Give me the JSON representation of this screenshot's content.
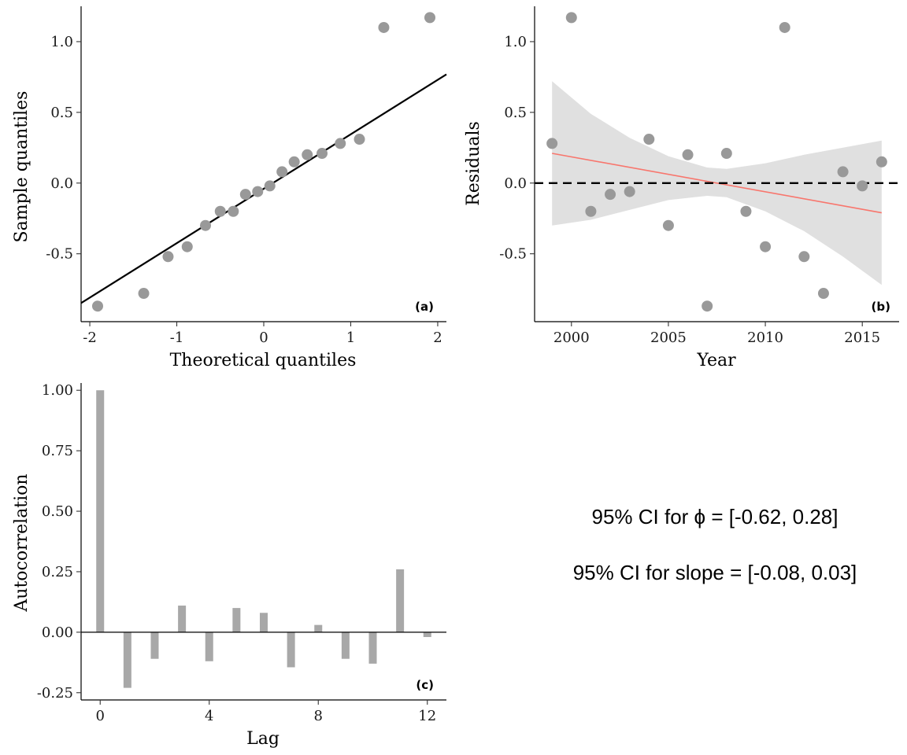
{
  "colors": {
    "points": "#999999",
    "bars": "#a8a8a8",
    "ribbon": "#e0e0e0",
    "trend": "#f8766d",
    "axis": "#000000"
  },
  "chart_data": [
    {
      "type": "scatter",
      "panel_tag": "(a)",
      "title": "",
      "xlabel": "Theoretical quantiles",
      "ylabel": "Sample quantiles",
      "xlim": [
        -2.1,
        2.1
      ],
      "ylim": [
        -0.98,
        1.25
      ],
      "xticks": [
        -2,
        -1,
        0,
        1,
        2
      ],
      "xtick_labels": [
        "-2",
        "-1",
        "0",
        "1",
        "2"
      ],
      "yticks": [
        -0.5,
        0,
        0.5,
        1
      ],
      "ytick_labels": [
        "-0.5",
        "0.0",
        "0.5",
        "1.0"
      ],
      "reference_line": {
        "intercept": -0.04,
        "slope": 0.385
      },
      "points": [
        {
          "x": -1.91,
          "y": -0.87
        },
        {
          "x": -1.38,
          "y": -0.78
        },
        {
          "x": -1.1,
          "y": -0.52
        },
        {
          "x": -0.88,
          "y": -0.45
        },
        {
          "x": -0.67,
          "y": -0.3
        },
        {
          "x": -0.5,
          "y": -0.2
        },
        {
          "x": -0.35,
          "y": -0.2
        },
        {
          "x": -0.21,
          "y": -0.08
        },
        {
          "x": -0.07,
          "y": -0.06
        },
        {
          "x": 0.07,
          "y": -0.02
        },
        {
          "x": 0.21,
          "y": 0.08
        },
        {
          "x": 0.35,
          "y": 0.15
        },
        {
          "x": 0.5,
          "y": 0.2
        },
        {
          "x": 0.67,
          "y": 0.21
        },
        {
          "x": 0.88,
          "y": 0.28
        },
        {
          "x": 1.1,
          "y": 0.31
        },
        {
          "x": 1.38,
          "y": 1.1
        },
        {
          "x": 1.91,
          "y": 1.17
        }
      ]
    },
    {
      "type": "scatter",
      "panel_tag": "(b)",
      "title": "",
      "xlabel": "Year",
      "ylabel": "Residuals",
      "xlim": [
        1998.1,
        2016.9
      ],
      "ylim": [
        -0.98,
        1.25
      ],
      "xticks": [
        2000,
        2005,
        2010,
        2015
      ],
      "xtick_labels": [
        "2000",
        "2005",
        "2010",
        "2015"
      ],
      "yticks": [
        -0.5,
        0,
        0.5,
        1
      ],
      "ytick_labels": [
        "-0.5",
        "0.0",
        "0.5",
        "1.0"
      ],
      "zero_line": 0,
      "trend": {
        "x": [
          1999,
          2016
        ],
        "y": [
          0.21,
          -0.21
        ]
      },
      "ribbon": {
        "x": [
          1999,
          2001,
          2003,
          2005,
          2007,
          2008,
          2010,
          2012,
          2014,
          2016
        ],
        "upper": [
          0.72,
          0.49,
          0.32,
          0.19,
          0.11,
          0.1,
          0.14,
          0.2,
          0.25,
          0.3
        ],
        "lower": [
          -0.3,
          -0.26,
          -0.19,
          -0.12,
          -0.09,
          -0.1,
          -0.2,
          -0.34,
          -0.52,
          -0.72
        ]
      },
      "points": [
        {
          "x": 1999,
          "y": 0.28
        },
        {
          "x": 2000,
          "y": 1.17
        },
        {
          "x": 2001,
          "y": -0.2
        },
        {
          "x": 2002,
          "y": -0.08
        },
        {
          "x": 2003,
          "y": -0.06
        },
        {
          "x": 2004,
          "y": 0.31
        },
        {
          "x": 2005,
          "y": -0.3
        },
        {
          "x": 2006,
          "y": 0.2
        },
        {
          "x": 2007,
          "y": -0.87
        },
        {
          "x": 2008,
          "y": 0.21
        },
        {
          "x": 2009,
          "y": -0.2
        },
        {
          "x": 2010,
          "y": -0.45
        },
        {
          "x": 2011,
          "y": 1.1
        },
        {
          "x": 2012,
          "y": -0.52
        },
        {
          "x": 2013,
          "y": -0.78
        },
        {
          "x": 2014,
          "y": 0.08
        },
        {
          "x": 2015,
          "y": -0.02
        },
        {
          "x": 2016,
          "y": 0.15
        }
      ]
    },
    {
      "type": "bar",
      "panel_tag": "(c)",
      "title": "",
      "xlabel": "Lag",
      "ylabel": "Autocorrelation",
      "xlim": [
        -0.7,
        12.7
      ],
      "ylim": [
        -0.28,
        1.03
      ],
      "xticks": [
        0,
        4,
        8,
        12
      ],
      "xtick_labels": [
        "0",
        "4",
        "8",
        "12"
      ],
      "yticks": [
        -0.25,
        0,
        0.25,
        0.5,
        0.75,
        1
      ],
      "ytick_labels": [
        "-0.25",
        "0.00",
        "0.25",
        "0.50",
        "0.75",
        "1.00"
      ],
      "baseline": 0,
      "categories": [
        0,
        1,
        2,
        3,
        4,
        5,
        6,
        7,
        8,
        9,
        10,
        11,
        12
      ],
      "values": [
        1.0,
        -0.23,
        -0.11,
        0.11,
        -0.12,
        0.1,
        0.08,
        -0.145,
        0.03,
        -0.11,
        -0.13,
        0.26,
        -0.02
      ]
    }
  ],
  "annotation": {
    "line1": "95% CI for ϕ =  [-0.62, 0.28]",
    "line2": "95% CI for slope =  [-0.08, 0.03]"
  }
}
